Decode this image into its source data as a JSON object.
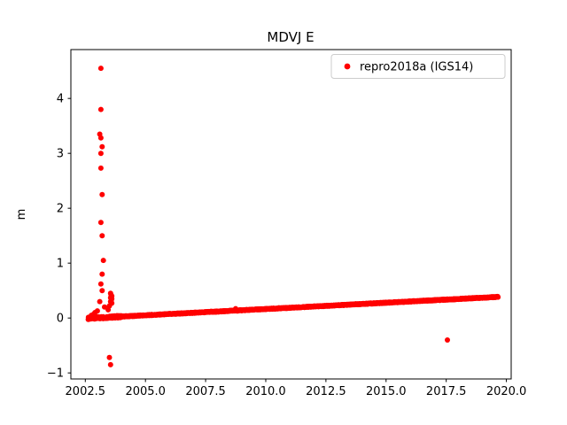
{
  "chart_data": {
    "type": "scatter",
    "title": "MDVJ E",
    "xlabel": "",
    "ylabel": "m",
    "xlim": [
      2001.9,
      2020.2
    ],
    "ylim": [
      -1.11,
      4.89
    ],
    "grid": false,
    "xticks": [
      {
        "value": 2002.5,
        "label": "2002.5"
      },
      {
        "value": 2005.0,
        "label": "2005.0"
      },
      {
        "value": 2007.5,
        "label": "2007.5"
      },
      {
        "value": 2010.0,
        "label": "2010.0"
      },
      {
        "value": 2012.5,
        "label": "2012.5"
      },
      {
        "value": 2015.0,
        "label": "2015.0"
      },
      {
        "value": 2017.5,
        "label": "2017.5"
      },
      {
        "value": 2020.0,
        "label": "2020.0"
      }
    ],
    "yticks": [
      {
        "value": -1,
        "label": "−1"
      },
      {
        "value": 0,
        "label": "0"
      },
      {
        "value": 1,
        "label": "1"
      },
      {
        "value": 2,
        "label": "2"
      },
      {
        "value": 3,
        "label": "3"
      },
      {
        "value": 4,
        "label": "4"
      }
    ],
    "legend": {
      "position": "upper right",
      "entries": [
        {
          "label": "repro2018a (IGS14)",
          "color": "#ff0000",
          "marker": "dot"
        }
      ]
    },
    "series": [
      {
        "name": "repro2018a (IGS14)",
        "color": "#ff0000",
        "marker_radius": 3,
        "trend": {
          "description": "dense near-daily solutions forming a linear trend",
          "x_start": 2002.62,
          "x_end": 2019.65,
          "y_start": -0.005,
          "y_end": 0.385,
          "point_step": 0.01,
          "noise": 0.008,
          "early_noise": 0.02,
          "early_until": 2004.0
        },
        "outliers": [
          [
            2003.15,
            4.55
          ],
          [
            2003.15,
            3.8
          ],
          [
            2003.1,
            3.35
          ],
          [
            2003.15,
            3.28
          ],
          [
            2003.2,
            3.12
          ],
          [
            2003.15,
            3.0
          ],
          [
            2003.15,
            2.73
          ],
          [
            2003.2,
            2.25
          ],
          [
            2003.15,
            1.74
          ],
          [
            2003.2,
            1.5
          ],
          [
            2003.25,
            1.05
          ],
          [
            2003.2,
            0.8
          ],
          [
            2003.15,
            0.62
          ],
          [
            2003.2,
            0.5
          ],
          [
            2003.1,
            0.3
          ],
          [
            2003.3,
            0.2
          ],
          [
            2002.75,
            0.05
          ],
          [
            2002.85,
            0.07
          ],
          [
            2002.9,
            0.1
          ],
          [
            2003.0,
            0.13
          ],
          [
            2003.55,
            0.45
          ],
          [
            2003.57,
            0.42
          ],
          [
            2003.6,
            0.4
          ],
          [
            2003.55,
            0.37
          ],
          [
            2003.6,
            0.35
          ],
          [
            2003.58,
            0.32
          ],
          [
            2003.55,
            0.3
          ],
          [
            2003.6,
            0.27
          ],
          [
            2003.5,
            0.22
          ],
          [
            2003.45,
            0.15
          ],
          [
            2003.5,
            -0.72
          ],
          [
            2003.55,
            -0.85
          ],
          [
            2008.75,
            0.17
          ],
          [
            2017.55,
            -0.4
          ]
        ]
      }
    ]
  }
}
